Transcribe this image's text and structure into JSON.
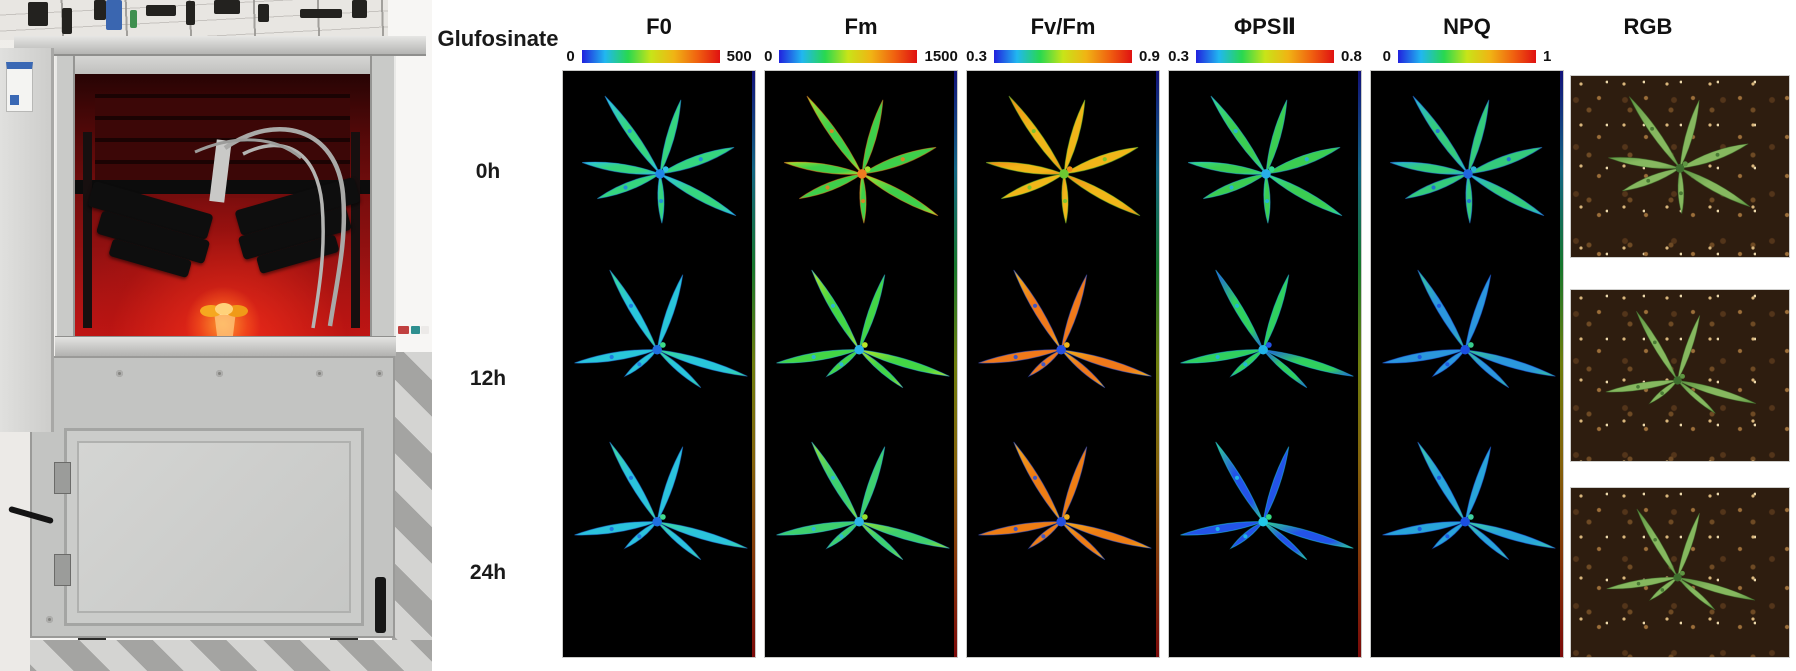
{
  "figure": {
    "treatment_label": "Glufosinate",
    "row_labels": [
      "0h",
      "12h",
      "24h"
    ],
    "columns": [
      {
        "key": "F0",
        "label": "F0",
        "scale_min": "0",
        "scale_max": "500"
      },
      {
        "key": "Fm",
        "label": "Fm",
        "scale_min": "0",
        "scale_max": "1500"
      },
      {
        "key": "FvFm",
        "label": "Fv/Fm",
        "scale_min": "0.3",
        "scale_max": "0.9"
      },
      {
        "key": "PhiPSII",
        "label": "ΦPSⅡ",
        "scale_min": "0.3",
        "scale_max": "0.8"
      },
      {
        "key": "NPQ",
        "label": "NPQ",
        "scale_min": "0",
        "scale_max": "1"
      },
      {
        "key": "RGB",
        "label": "RGB"
      }
    ],
    "colorbar_gradient": [
      "#2121de",
      "#21b7f0",
      "#28d850",
      "#c8e418",
      "#f0b414",
      "#f06310",
      "#e01111"
    ],
    "cells": [
      [
        {
          "c1": "#35d57f",
          "c2": "#2fc3ea",
          "c3": "#1f86e8"
        },
        {
          "c1": "#3ecf4a",
          "c2": "#a9e030",
          "c3": "#ef7b20"
        },
        {
          "c1": "#f0b619",
          "c2": "#ef8b16",
          "c3": "#6cc832"
        },
        {
          "c1": "#3bcd52",
          "c2": "#34d993",
          "c3": "#27aee8"
        },
        {
          "c1": "#34cb7c",
          "c2": "#2ab3d8",
          "c3": "#2166e0"
        }
      ],
      [
        {
          "c1": "#29c6da",
          "c2": "#3bdd8a",
          "c3": "#1f6fe0"
        },
        {
          "c1": "#43d645",
          "c2": "#b9e526",
          "c3": "#2bb2e8"
        },
        {
          "c1": "#f0791a",
          "c2": "#f0b619",
          "c3": "#2450e0"
        },
        {
          "c1": "#30d05e",
          "c2": "#2353e8",
          "c3": "#20b4e8"
        },
        {
          "c1": "#2b97dd",
          "c2": "#37cc8d",
          "c3": "#1b4fe0"
        }
      ],
      [
        {
          "c1": "#2bc3dc",
          "c2": "#41dd92",
          "c3": "#1f6fe0"
        },
        {
          "c1": "#3ed06e",
          "c2": "#96e02e",
          "c3": "#2bb2e8"
        },
        {
          "c1": "#ee7d14",
          "c2": "#f0ac1c",
          "c3": "#2450e0"
        },
        {
          "c1": "#2353e8",
          "c2": "#35d883",
          "c3": "#20c8e8"
        },
        {
          "c1": "#29a5da",
          "c2": "#3fd0a0",
          "c3": "#1b4fe0"
        }
      ]
    ],
    "rgb_plant": {
      "c1": "#86b85f",
      "c2": "#5e9642",
      "c3": "#3e6e2e"
    }
  },
  "photo": {
    "palette": {
      "chamber_glow": "#c21515",
      "frame_aluminum": "#c9cac8",
      "cabinet_gray": "#c3c4c2",
      "soil_brown": "#2e1d0f",
      "plant_glow_orange": "#f6a81f"
    }
  }
}
